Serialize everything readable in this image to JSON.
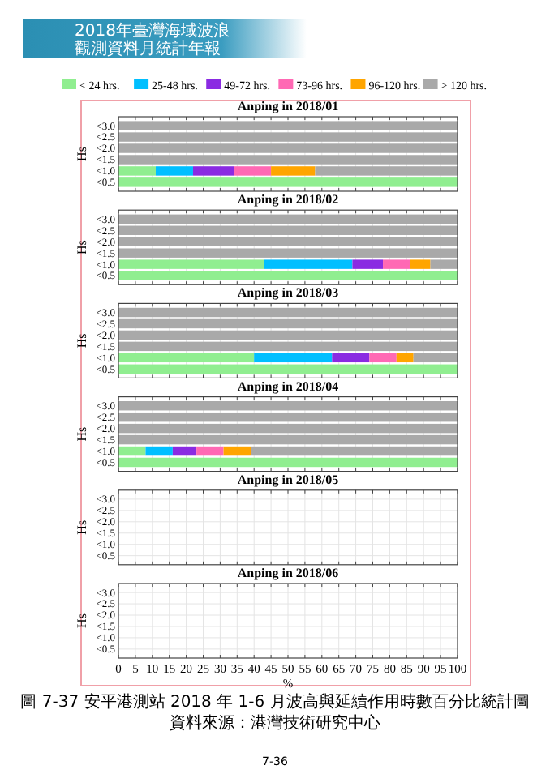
{
  "chart_data": [
    {
      "type": "bar",
      "orientation": "horizontal",
      "stacked": true,
      "title": "Anping in 2018/01",
      "ylabel": "Hs",
      "categories": [
        "<3.0",
        "<2.5",
        "<2.0",
        "<1.5",
        "<1.0",
        "<0.5"
      ],
      "xlim": [
        0,
        100
      ],
      "xticks": [
        0,
        5,
        10,
        15,
        20,
        25,
        30,
        35,
        40,
        45,
        50,
        55,
        60,
        65,
        70,
        75,
        80,
        85,
        90,
        95,
        100
      ],
      "grid": true,
      "tick_labels": "y",
      "legend": "top",
      "annotations": [
        "2018年臺灣海域波浪",
        "觀測資料月統計年報"
      ],
      "series": [
        {
          "name": "< 24 hrs.",
          "color": "#90ee90",
          "values": [
            0,
            0,
            0,
            0,
            11,
            100
          ]
        },
        {
          "name": "25-48 hrs.",
          "color": "#00bfff",
          "values": [
            0,
            0,
            0,
            0,
            11,
            0
          ]
        },
        {
          "name": "49-72 hrs.",
          "color": "#8a2be2",
          "values": [
            0,
            0,
            0,
            0,
            12,
            0
          ]
        },
        {
          "name": "73-96 hrs.",
          "color": "#ff69b4",
          "values": [
            0,
            0,
            0,
            0,
            11,
            0
          ]
        },
        {
          "name": "96-120 hrs.",
          "color": "#ffa500",
          "values": [
            0,
            0,
            0,
            0,
            13,
            0
          ]
        },
        {
          "name": "> 120 hrs.",
          "color": "#a9a9a9",
          "values": [
            100,
            100,
            100,
            100,
            42,
            0
          ]
        }
      ]
    },
    {
      "type": "bar",
      "orientation": "horizontal",
      "stacked": true,
      "title": "Anping in 2018/02",
      "ylabel": "Hs",
      "categories": [
        "<3.0",
        "<2.5",
        "<2.0",
        "<1.5",
        "<1.0",
        "<0.5"
      ],
      "xlim": [
        0,
        100
      ],
      "xticks": [
        0,
        5,
        10,
        15,
        20,
        25,
        30,
        35,
        40,
        45,
        50,
        55,
        60,
        65,
        70,
        75,
        80,
        85,
        90,
        95,
        100
      ],
      "grid": true,
      "tick_labels": "y",
      "series": [
        {
          "color": "#90ee90",
          "values": [
            0,
            0,
            0,
            0,
            43,
            100
          ]
        },
        {
          "color": "#00bfff",
          "values": [
            0,
            0,
            0,
            0,
            26,
            0
          ]
        },
        {
          "color": "#8a2be2",
          "values": [
            0,
            0,
            0,
            0,
            9,
            0
          ]
        },
        {
          "color": "#ff69b4",
          "values": [
            0,
            0,
            0,
            0,
            8,
            0
          ]
        },
        {
          "color": "#ffa500",
          "values": [
            0,
            0,
            0,
            0,
            6,
            0
          ]
        },
        {
          "color": "#a9a9a9",
          "values": [
            100,
            100,
            100,
            100,
            8,
            0
          ]
        }
      ]
    },
    {
      "type": "bar",
      "orientation": "horizontal",
      "stacked": true,
      "title": "Anping in 2018/03",
      "ylabel": "Hs",
      "categories": [
        "<3.0",
        "<2.5",
        "<2.0",
        "<1.5",
        "<1.0",
        "<0.5"
      ],
      "xlim": [
        0,
        100
      ],
      "xticks": [
        0,
        5,
        10,
        15,
        20,
        25,
        30,
        35,
        40,
        45,
        50,
        55,
        60,
        65,
        70,
        75,
        80,
        85,
        90,
        95,
        100
      ],
      "grid": true,
      "tick_labels": "y",
      "series": [
        {
          "color": "#90ee90",
          "values": [
            0,
            0,
            0,
            0,
            40,
            100
          ]
        },
        {
          "color": "#00bfff",
          "values": [
            0,
            0,
            0,
            0,
            23,
            0
          ]
        },
        {
          "color": "#8a2be2",
          "values": [
            0,
            0,
            0,
            0,
            11,
            0
          ]
        },
        {
          "color": "#ff69b4",
          "values": [
            0,
            0,
            0,
            0,
            8,
            0
          ]
        },
        {
          "color": "#ffa500",
          "values": [
            0,
            0,
            0,
            0,
            5,
            0
          ]
        },
        {
          "color": "#a9a9a9",
          "values": [
            100,
            100,
            100,
            100,
            13,
            0
          ]
        }
      ]
    },
    {
      "type": "bar",
      "orientation": "horizontal",
      "stacked": true,
      "title": "Anping in 2018/04",
      "ylabel": "Hs",
      "categories": [
        "<3.0",
        "<2.5",
        "<2.0",
        "<1.5",
        "<1.0",
        "<0.5"
      ],
      "xlim": [
        0,
        100
      ],
      "xticks": [
        0,
        5,
        10,
        15,
        20,
        25,
        30,
        35,
        40,
        45,
        50,
        55,
        60,
        65,
        70,
        75,
        80,
        85,
        90,
        95,
        100
      ],
      "grid": true,
      "tick_labels": "y",
      "series": [
        {
          "color": "#90ee90",
          "values": [
            0,
            0,
            0,
            0,
            8,
            100
          ]
        },
        {
          "color": "#00bfff",
          "values": [
            0,
            0,
            0,
            0,
            8,
            0
          ]
        },
        {
          "color": "#8a2be2",
          "values": [
            0,
            0,
            0,
            0,
            7,
            0
          ]
        },
        {
          "color": "#ff69b4",
          "values": [
            0,
            0,
            0,
            0,
            8,
            0
          ]
        },
        {
          "color": "#ffa500",
          "values": [
            0,
            0,
            0,
            0,
            8,
            0
          ]
        },
        {
          "color": "#a9a9a9",
          "values": [
            100,
            100,
            100,
            100,
            61,
            0
          ]
        }
      ]
    },
    {
      "type": "bar",
      "orientation": "horizontal",
      "stacked": true,
      "title": "Anping in 2018/05",
      "ylabel": "Hs",
      "categories": [
        "<3.0",
        "<2.5",
        "<2.0",
        "<1.5",
        "<1.0",
        "<0.5"
      ],
      "xlim": [
        0,
        100
      ],
      "xticks": [
        0,
        5,
        10,
        15,
        20,
        25,
        30,
        35,
        40,
        45,
        50,
        55,
        60,
        65,
        70,
        75,
        80,
        85,
        90,
        95,
        100
      ],
      "grid": true,
      "tick_labels": "y",
      "values": [
        null,
        null,
        null,
        null,
        null,
        null
      ]
    },
    {
      "type": "bar",
      "orientation": "horizontal",
      "stacked": true,
      "title": "Anping in 2018/06",
      "ylabel": "Hs",
      "xlabel": "%",
      "categories": [
        "<3.0",
        "<2.5",
        "<2.0",
        "<1.5",
        "<1.0",
        "<0.5"
      ],
      "xlim": [
        0,
        100
      ],
      "xticks": [
        0,
        5,
        10,
        15,
        20,
        25,
        30,
        35,
        40,
        45,
        50,
        55,
        60,
        65,
        70,
        75,
        80,
        85,
        90,
        95,
        100
      ],
      "grid": true,
      "values": [
        null,
        null,
        null,
        null,
        null,
        null
      ],
      "annotations": [
        "圖 7-37 安平港測站 2018 年 1-6 月波高與延續作用時數百分比統計圖",
        "資料來源：港灣技術研究中心",
        "7-36"
      ]
    }
  ]
}
